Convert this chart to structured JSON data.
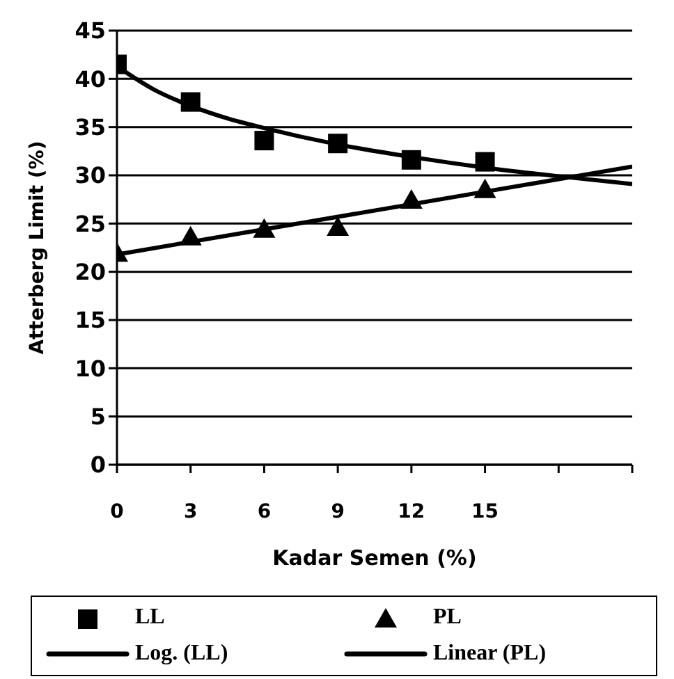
{
  "chart_data": {
    "type": "scatter",
    "xlabel": "Kadar Semen (%)",
    "ylabel": "Atterberg Limit (%)",
    "xlim": [
      0,
      21
    ],
    "xticks": [
      0,
      3,
      6,
      9,
      12,
      15,
      {
        "value": 18,
        "label": null
      },
      {
        "value": 21,
        "label": null
      }
    ],
    "ylim": [
      0,
      45
    ],
    "yticks": [
      0,
      5,
      10,
      15,
      20,
      25,
      30,
      35,
      40,
      45
    ],
    "grid": "y",
    "legend": "bottom",
    "x": [
      0,
      3,
      6,
      9,
      12,
      15
    ],
    "series": [
      {
        "name": "LL",
        "marker": "square",
        "color": "#000000",
        "values": [
          41.5,
          37.6,
          33.6,
          33.3,
          31.6,
          31.4
        ]
      },
      {
        "name": "PL",
        "marker": "triangle",
        "color": "#000000",
        "values": [
          21.9,
          23.6,
          24.4,
          24.6,
          27.4,
          28.5
        ]
      },
      {
        "name": "Log. (LL)",
        "type": "line",
        "marker": "none",
        "line_style": "solid",
        "color": "#000000",
        "x": [
          0,
          1.5,
          3,
          4.5,
          6,
          9,
          12,
          15,
          18,
          21
        ],
        "values": [
          41.3,
          38.9,
          37.2,
          35.9,
          34.9,
          33.2,
          31.9,
          30.8,
          29.9,
          29.1
        ]
      },
      {
        "name": "Linear (PL)",
        "type": "line",
        "marker": "none",
        "line_style": "solid",
        "color": "#000000",
        "x": [
          0,
          21
        ],
        "values": [
          21.8,
          30.9
        ]
      }
    ]
  }
}
